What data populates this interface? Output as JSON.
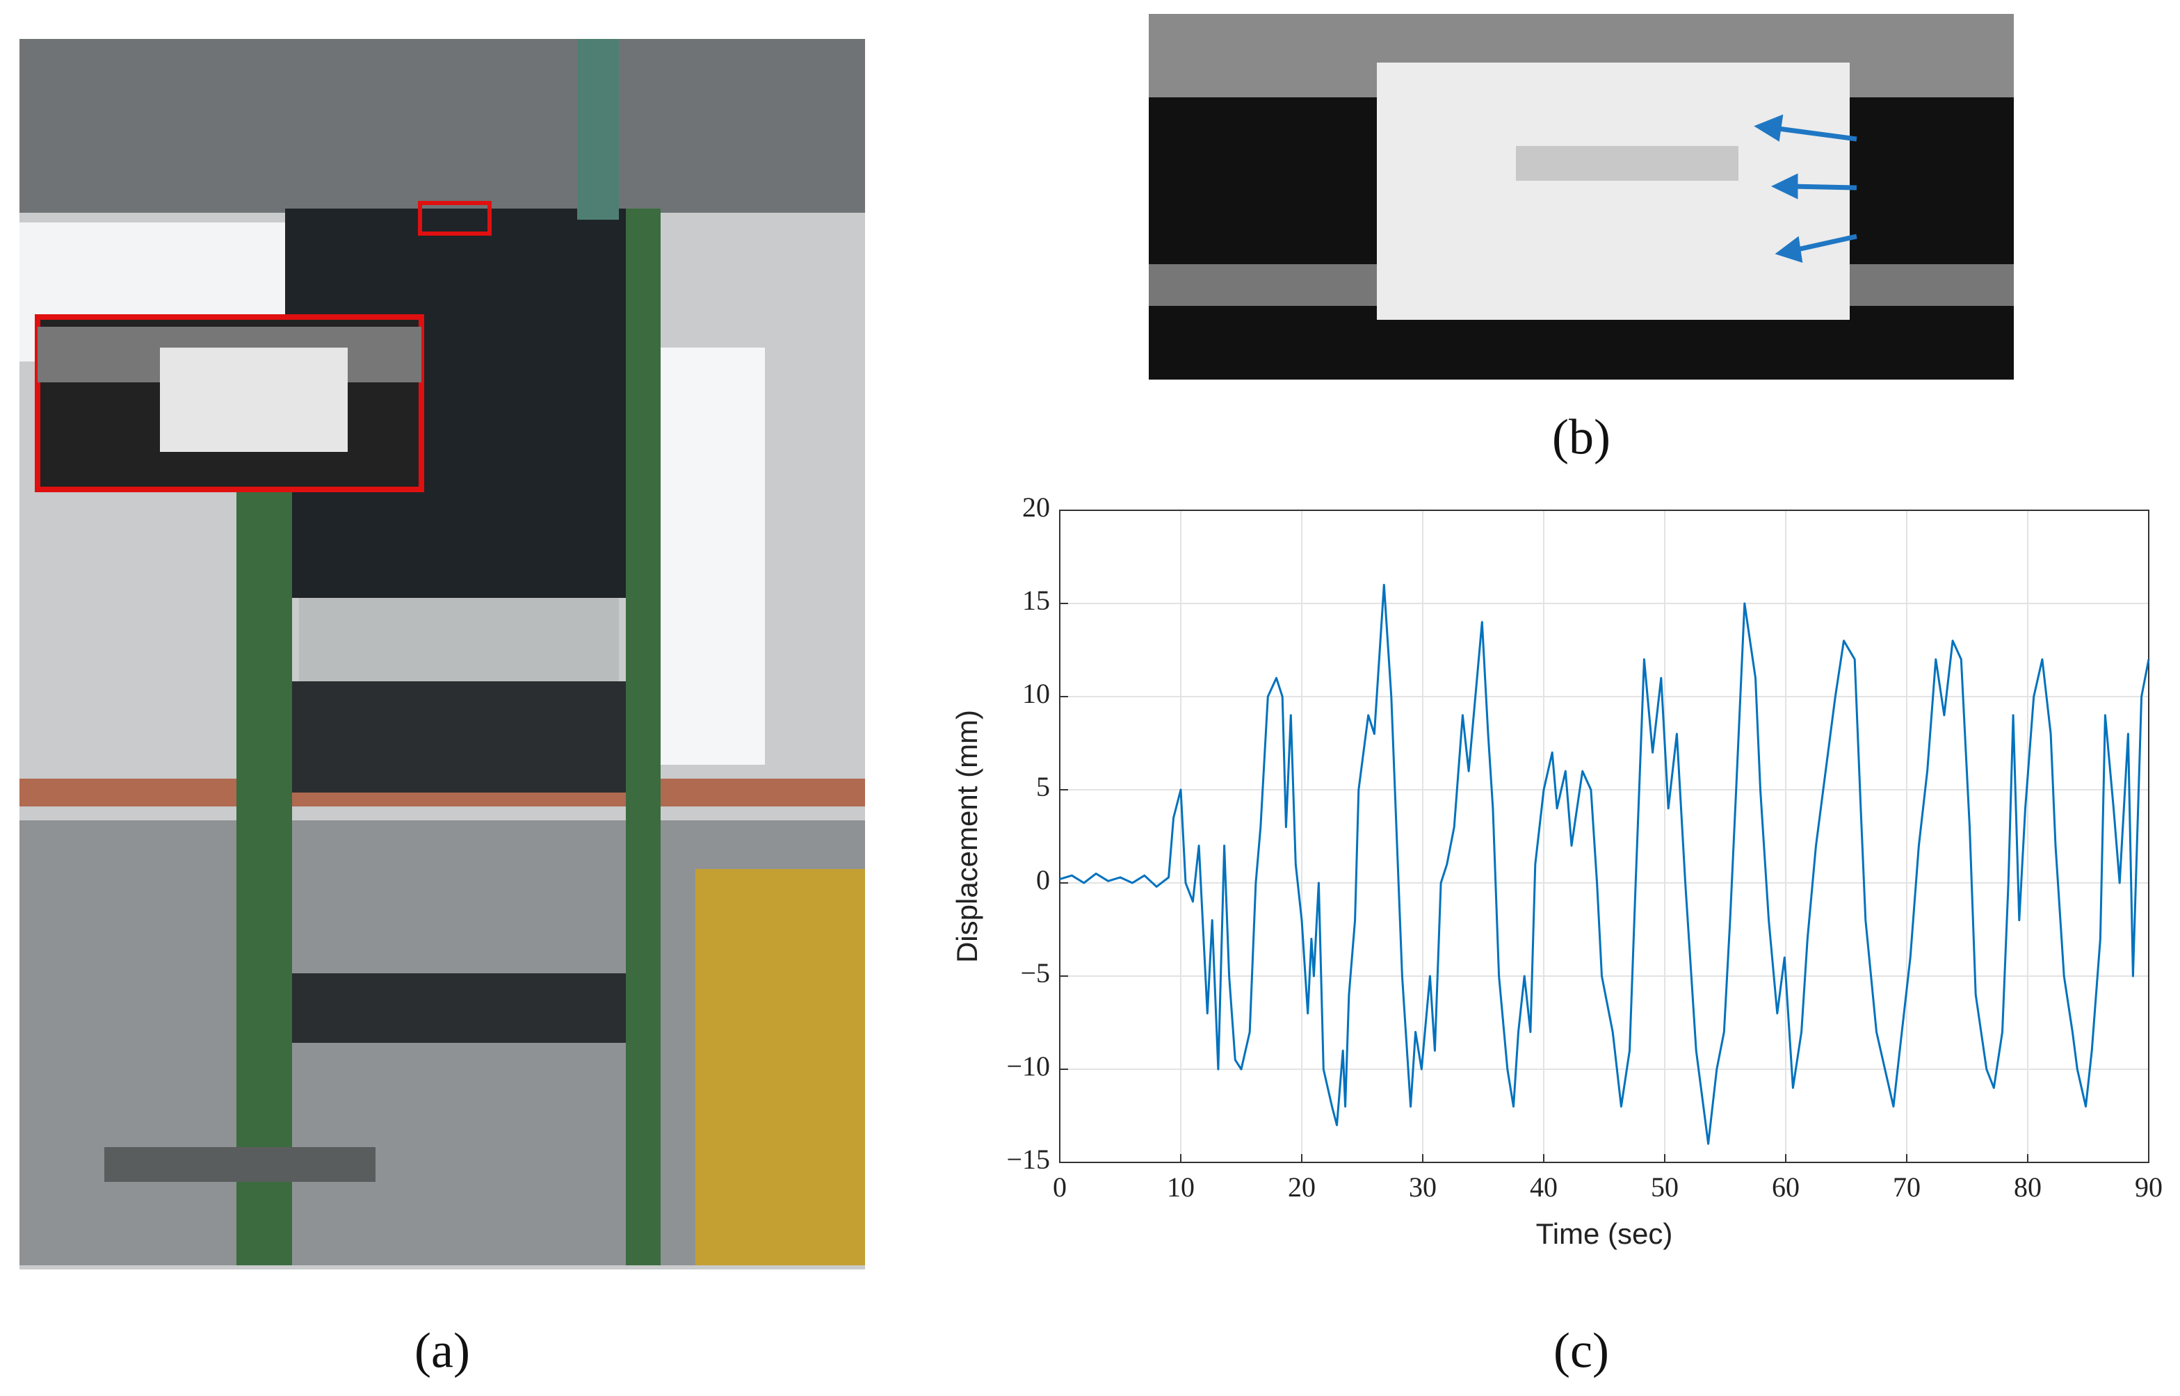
{
  "panel_labels": [
    "(a)",
    "(b)",
    "(c)"
  ],
  "chart_data": {
    "type": "line",
    "xlabel": "Time (sec)",
    "ylabel": "Displacement (mm)",
    "x": [
      0,
      1,
      2,
      3,
      4,
      5,
      6,
      7,
      8,
      9,
      9.4,
      10,
      10.4,
      11,
      11.5,
      12.2,
      12.6,
      13.1,
      13.6,
      14,
      14.5,
      15,
      15.7,
      16.2,
      16.6,
      17.2,
      17.9,
      18.4,
      18.7,
      19.1,
      19.5,
      20,
      20.5,
      20.8,
      21,
      21.4,
      21.8,
      22.5,
      22.9,
      23.4,
      23.6,
      23.9,
      24.4,
      24.7,
      25.5,
      26,
      26.8,
      27.4,
      27.7,
      28.3,
      29,
      29.4,
      29.9,
      30.6,
      31,
      31.5,
      32,
      32.6,
      33.3,
      33.8,
      34.9,
      35.4,
      35.8,
      36.3,
      37,
      37.5,
      37.9,
      38.4,
      38.9,
      39.3,
      40,
      40.7,
      41.1,
      41.8,
      42.3,
      43.2,
      43.9,
      44.4,
      44.8,
      45.7,
      46.4,
      47.1,
      47.6,
      48.3,
      49,
      49.7,
      50.3,
      51,
      51.7,
      52.6,
      53.6,
      54.3,
      54.9,
      55.4,
      55.9,
      56.6,
      57.5,
      57.9,
      58.6,
      59.3,
      59.9,
      60.6,
      61.3,
      61.8,
      62.5,
      63.1,
      64.1,
      64.8,
      65.7,
      66.2,
      66.6,
      67.5,
      68.2,
      68.9,
      69.6,
      70.3,
      71,
      71.7,
      72.4,
      73.1,
      73.8,
      74.5,
      75.2,
      75.7,
      76.6,
      77.2,
      77.9,
      78.4,
      78.8,
      79.3,
      79.8,
      80.5,
      81.2,
      81.9,
      82.3,
      83,
      83.7,
      84.1,
      84.8,
      85.3,
      86,
      86.4,
      87.1,
      87.6,
      88.3,
      88.7,
      89.4,
      90
    ],
    "series": [
      {
        "name": "Displacement",
        "color": "#0072bd",
        "values": [
          0.2,
          0.4,
          0,
          0.5,
          0.1,
          0.3,
          0,
          0.4,
          -0.2,
          0.3,
          3.5,
          5,
          0,
          -1,
          2,
          -7,
          -2,
          -10,
          2,
          -5,
          -9.5,
          -10,
          -8,
          0,
          3,
          10,
          11,
          10,
          3,
          9,
          1,
          -2,
          -7,
          -3,
          -5,
          0,
          -10,
          -12,
          -13,
          -9,
          -12,
          -6,
          -2,
          5,
          9,
          8,
          16,
          10,
          5,
          -5,
          -12,
          -8,
          -10,
          -5,
          -9,
          0,
          1,
          3,
          9,
          6,
          14,
          8,
          4,
          -5,
          -10,
          -12,
          -8,
          -5,
          -8,
          1,
          5,
          7,
          4,
          6,
          2,
          6,
          5,
          0,
          -5,
          -8,
          -12,
          -9,
          0,
          12,
          7,
          11,
          4,
          8,
          0,
          -9,
          -14,
          -10,
          -8,
          -2,
          5,
          15,
          11,
          5,
          -2,
          -7,
          -4,
          -11,
          -8,
          -3,
          2,
          5,
          10,
          13,
          12,
          4,
          -2,
          -8,
          -10,
          -12,
          -8,
          -4,
          2,
          6,
          12,
          9,
          13,
          12,
          3,
          -6,
          -10,
          -11,
          -8,
          0,
          9,
          -2,
          4,
          10,
          12,
          8,
          2,
          -5,
          -8,
          -10,
          -12,
          -9,
          -3,
          9,
          4,
          0,
          8,
          -5,
          10,
          12
        ]
      }
    ],
    "xlim": [
      0,
      90
    ],
    "ylim": [
      -15,
      20
    ],
    "xticks": [
      0,
      10,
      20,
      30,
      40,
      50,
      60,
      70,
      80,
      90
    ],
    "yticks": [
      {
        "value": -15,
        "label": "−15"
      },
      {
        "value": -10,
        "label": "−10"
      },
      {
        "value": -5,
        "label": "−5"
      },
      0,
      5,
      10,
      15,
      20
    ],
    "grid": true
  }
}
